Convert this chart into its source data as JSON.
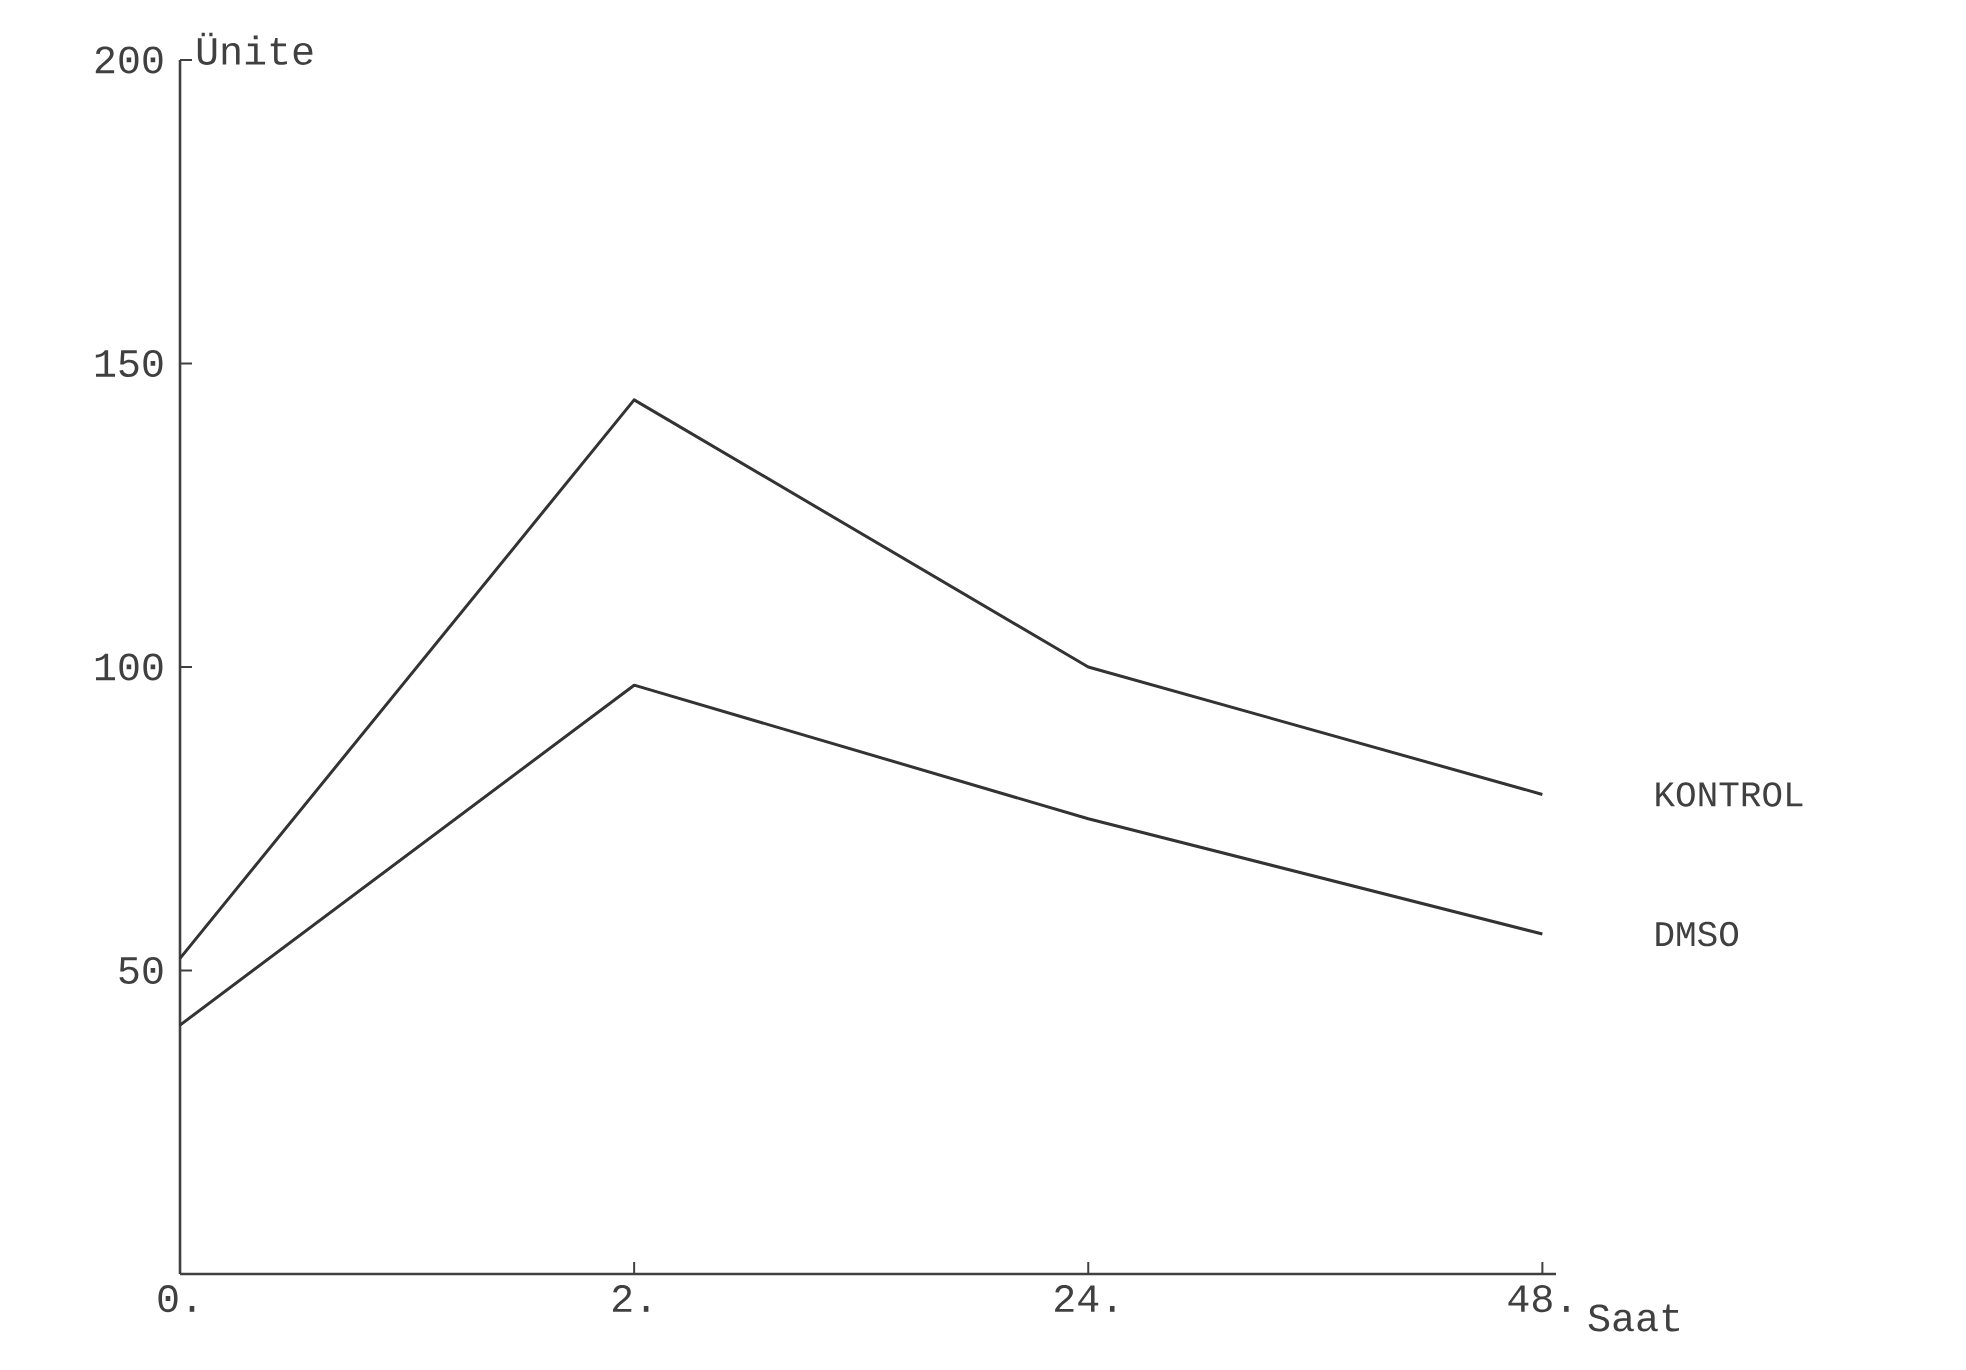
{
  "chart_data": {
    "type": "line",
    "xlabel": "Saat",
    "ylabel": "Ünite",
    "categories": [
      "0.",
      "2.",
      "24.",
      "48."
    ],
    "series": [
      {
        "name": "KONTROL",
        "color": "#333333",
        "values": [
          52,
          144,
          100,
          79
        ]
      },
      {
        "name": "DMSO",
        "color": "#333333",
        "values": [
          41,
          97,
          75,
          56
        ]
      }
    ],
    "ylim": [
      0,
      200
    ],
    "yticks": [
      50,
      100,
      150,
      200
    ],
    "grid": false,
    "marker": "none",
    "line_style": "solid"
  }
}
